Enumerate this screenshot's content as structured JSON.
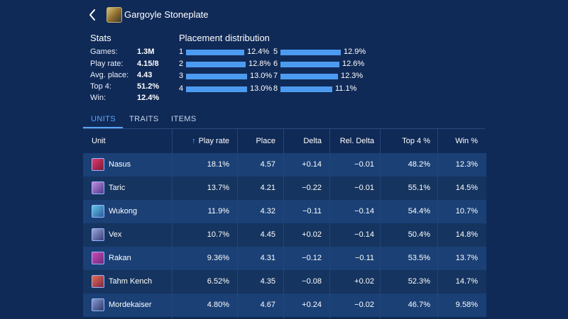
{
  "header": {
    "title": "Gargoyle Stoneplate"
  },
  "stats": {
    "heading": "Stats",
    "items": [
      {
        "label": "Games:",
        "value": "1.3M"
      },
      {
        "label": "Play rate:",
        "value": "4.15/8"
      },
      {
        "label": "Avg. place:",
        "value": "4.43"
      },
      {
        "label": "Top 4:",
        "value": "51.2%"
      },
      {
        "label": "Win:",
        "value": "12.4%"
      }
    ]
  },
  "distribution": {
    "heading": "Placement distribution",
    "items": [
      {
        "place": "1",
        "pct": "12.4%",
        "value": 12.4
      },
      {
        "place": "2",
        "pct": "12.8%",
        "value": 12.8
      },
      {
        "place": "3",
        "pct": "13.0%",
        "value": 13.0
      },
      {
        "place": "4",
        "pct": "13.0%",
        "value": 13.0
      },
      {
        "place": "5",
        "pct": "12.9%",
        "value": 12.9
      },
      {
        "place": "6",
        "pct": "12.6%",
        "value": 12.6
      },
      {
        "place": "7",
        "pct": "12.3%",
        "value": 12.3
      },
      {
        "place": "8",
        "pct": "11.1%",
        "value": 11.1
      }
    ]
  },
  "tabs": [
    {
      "label": "UNITS",
      "active": true
    },
    {
      "label": "TRAITS",
      "active": false
    },
    {
      "label": "ITEMS",
      "active": false
    }
  ],
  "table": {
    "columns": [
      "Unit",
      "Play rate",
      "Place",
      "Delta",
      "Rel. Delta",
      "Top 4 %",
      "Win %"
    ],
    "rows": [
      {
        "unit": "Nasus",
        "icon": "nasus-icon",
        "play_rate": "18.1%",
        "place": "4.57",
        "delta": "+0.14",
        "rel_delta": "−0.01",
        "top4": "48.2%",
        "win": "12.3%"
      },
      {
        "unit": "Taric",
        "icon": "taric-icon",
        "play_rate": "13.7%",
        "place": "4.21",
        "delta": "−0.22",
        "rel_delta": "−0.01",
        "top4": "55.1%",
        "win": "14.5%"
      },
      {
        "unit": "Wukong",
        "icon": "wukong-icon",
        "play_rate": "11.9%",
        "place": "4.32",
        "delta": "−0.11",
        "rel_delta": "−0.14",
        "top4": "54.4%",
        "win": "10.7%"
      },
      {
        "unit": "Vex",
        "icon": "vex-icon",
        "play_rate": "10.7%",
        "place": "4.45",
        "delta": "+0.02",
        "rel_delta": "−0.14",
        "top4": "50.4%",
        "win": "14.8%"
      },
      {
        "unit": "Rakan",
        "icon": "rakan-icon",
        "play_rate": "9.36%",
        "place": "4.31",
        "delta": "−0.12",
        "rel_delta": "−0.11",
        "top4": "53.5%",
        "win": "13.7%"
      },
      {
        "unit": "Tahm Kench",
        "icon": "tahm-kench-icon",
        "play_rate": "6.52%",
        "place": "4.35",
        "delta": "−0.08",
        "rel_delta": "+0.02",
        "top4": "52.3%",
        "win": "14.7%"
      },
      {
        "unit": "Mordekaiser",
        "icon": "mordekaiser-icon",
        "play_rate": "4.80%",
        "place": "4.67",
        "delta": "+0.24",
        "rel_delta": "−0.02",
        "top4": "46.7%",
        "win": "9.58%"
      }
    ]
  },
  "colors": {
    "background": "#102a57",
    "accent": "#58a6ff",
    "bar": "#4d9bf0",
    "row_odd": "#1a4076",
    "row_even": "#15345f"
  }
}
